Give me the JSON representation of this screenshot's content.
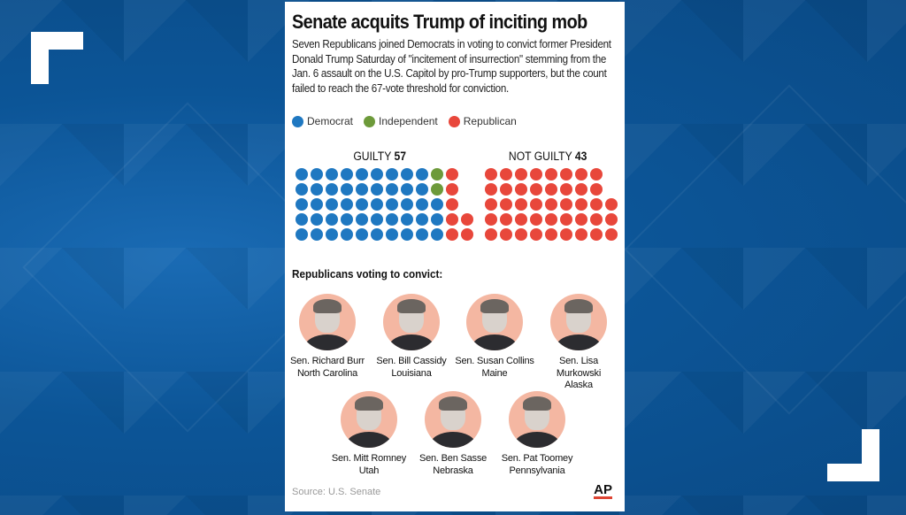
{
  "graphic": {
    "headline": "Senate acquits Trump of inciting mob",
    "dek": "Seven Republicans joined Democrats in voting to convict former President Donald Trump Saturday of \"incitement of insurrection\" stemming from the Jan. 6 assault on the U.S. Capitol by pro-Trump supporters, but the count failed to reach the 67-vote threshold for conviction.",
    "legend": [
      {
        "label": "Democrat",
        "color": "#1f78c1"
      },
      {
        "label": "Independent",
        "color": "#6d9a3a"
      },
      {
        "label": "Republican",
        "color": "#e8473b"
      }
    ],
    "guilty": {
      "label": "GUILTY",
      "count": "57",
      "democrat": 48,
      "independent": 2,
      "republican": 7
    },
    "not_guilty": {
      "label": "NOT GUILTY",
      "count": "43",
      "republican": 43
    },
    "section_title": "Republicans voting to convict:",
    "senators": [
      {
        "name": "Sen. Richard Burr",
        "state": "North Carolina"
      },
      {
        "name": "Sen. Bill Cassidy",
        "state": "Louisiana"
      },
      {
        "name": "Sen. Susan Collins",
        "state": "Maine"
      },
      {
        "name": "Sen. Lisa Murkowski",
        "state": "Alaska"
      },
      {
        "name": "Sen. Mitt Romney",
        "state": "Utah"
      },
      {
        "name": "Sen. Ben Sasse",
        "state": "Nebraska"
      },
      {
        "name": "Sen. Pat Toomey",
        "state": "Pennsylvania"
      }
    ],
    "source": "Source: U.S. Senate",
    "credit": "AP"
  }
}
